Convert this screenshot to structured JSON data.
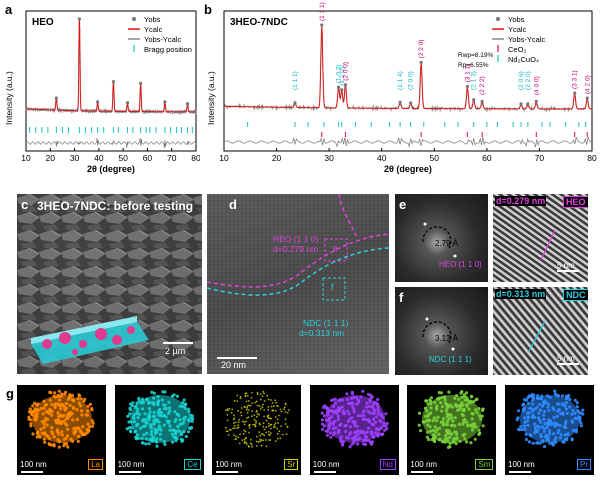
{
  "panels": {
    "a": {
      "label": "a",
      "sample": "HEO"
    },
    "b": {
      "label": "b",
      "sample": "3HEO-7NDC"
    },
    "c": {
      "label": "c",
      "caption": "3HEO-7NDC: before testing",
      "scale": "2 µm"
    },
    "d": {
      "label": "d",
      "scale": "20 nm",
      "heo_label": "HEO (1 1 0)",
      "heo_d": "d=0.279 nm",
      "ndc_label": "NDC (1 1 1)",
      "ndc_d": "d=0.313 nm",
      "box_e": "e",
      "box_f": "f"
    },
    "e": {
      "label": "e",
      "fft_distance": "2.79 Å",
      "fft_plane": "HEO (1 1 0)",
      "dspacing": "d=0.279 nm",
      "phase": "HEO",
      "scale": "5 nm"
    },
    "f": {
      "label": "f",
      "fft_distance": "3.13 Å",
      "fft_plane": "NDC (1 1 1)",
      "dspacing": "d=0.313 nm",
      "phase": "NDC",
      "scale": "5 nm"
    },
    "g": {
      "label": "g",
      "scale": "100 nm",
      "elements": [
        {
          "name": "La",
          "color": "#ff8a00"
        },
        {
          "name": "Ce",
          "color": "#19d2d2"
        },
        {
          "name": "Sr",
          "color": "#d9d400"
        },
        {
          "name": "Nd",
          "color": "#a040ff"
        },
        {
          "name": "Sm",
          "color": "#7ad23a"
        },
        {
          "name": "Pr",
          "color": "#2f8cff"
        }
      ]
    }
  },
  "chart_data": [
    {
      "type": "line",
      "panel": "a",
      "title": "HEO",
      "xlabel": "2θ (degree)",
      "ylabel": "Intensity (a.u.)",
      "xlim": [
        10,
        80
      ],
      "xticks": [
        10,
        20,
        30,
        40,
        50,
        60,
        70,
        80
      ],
      "legend_position": "top-right",
      "series": [
        {
          "name": "Yobs"
        },
        {
          "name": "Ycalc"
        },
        {
          "name": "Yobs-Ycalc"
        },
        {
          "name": "Bragg position"
        }
      ],
      "peaks": [
        {
          "x": 22.5,
          "y": 0.14
        },
        {
          "x": 32.0,
          "y": 1.0
        },
        {
          "x": 39.5,
          "y": 0.1
        },
        {
          "x": 46.0,
          "y": 0.32
        },
        {
          "x": 51.8,
          "y": 0.09
        },
        {
          "x": 57.2,
          "y": 0.3
        },
        {
          "x": 67.2,
          "y": 0.1
        },
        {
          "x": 76.5,
          "y": 0.08
        }
      ],
      "bragg_positions": [
        11.5,
        14.0,
        16.5,
        19.0,
        22.5,
        25.0,
        27.5,
        32.0,
        34.5,
        37.0,
        39.5,
        42.0,
        46.0,
        48.0,
        51.8,
        54.0,
        57.2,
        59.5,
        61.0,
        63.5,
        67.2,
        69.5,
        72.0,
        74.0,
        76.5,
        78.5
      ]
    },
    {
      "type": "line",
      "panel": "b",
      "title": "3HEO-7NDC",
      "xlabel": "2θ (degree)",
      "ylabel": "Intensity (a.u.)",
      "xlim": [
        10,
        80
      ],
      "xticks": [
        10,
        20,
        30,
        40,
        50,
        60,
        70,
        80
      ],
      "legend_position": "top-right",
      "series": [
        {
          "name": "Yobs"
        },
        {
          "name": "Ycalc"
        },
        {
          "name": "Yobs-Ycalc"
        },
        {
          "name": "CeO₂"
        },
        {
          "name": "Nd₂CuO₄"
        }
      ],
      "fit_stats": {
        "Rwp": "Rwp=8.19%",
        "Rp": "Rp=6.55%"
      },
      "peaks": [
        {
          "x": 23.5,
          "y": 0.06,
          "hkl": "(1 1 1)",
          "phase": "Nd2CuO4"
        },
        {
          "x": 28.6,
          "y": 1.0,
          "hkl": "(1 1 1)",
          "phase": "CeO2"
        },
        {
          "x": 31.8,
          "y": 0.25,
          "hkl": "(1 0 3)",
          "phase": "Nd2CuO4"
        },
        {
          "x": 32.4,
          "y": 0.22,
          "hkl": "(1 1 0)",
          "phase": "Nd2CuO4"
        },
        {
          "x": 33.1,
          "y": 0.28,
          "hkl": "(2 0 0)",
          "phase": "CeO2"
        },
        {
          "x": 43.5,
          "y": 0.07,
          "hkl": "(1 1 4)",
          "phase": "Nd2CuO4"
        },
        {
          "x": 45.5,
          "y": 0.06,
          "hkl": "(2 0 0)",
          "phase": "Nd2CuO4"
        },
        {
          "x": 47.5,
          "y": 0.55,
          "hkl": "(2 2 0)",
          "phase": "CeO2"
        },
        {
          "x": 56.3,
          "y": 0.26,
          "hkl": "(3 1 1)",
          "phase": "CeO2"
        },
        {
          "x": 57.5,
          "y": 0.1,
          "hkl": "(2 1 3)",
          "phase": "Nd2CuO4"
        },
        {
          "x": 59.1,
          "y": 0.08,
          "hkl": "(2 2 2)",
          "phase": "CeO2"
        },
        {
          "x": 66.5,
          "y": 0.05,
          "hkl": "(2 0 6)",
          "phase": "Nd2CuO4"
        },
        {
          "x": 67.8,
          "y": 0.05,
          "hkl": "(2 2 0)",
          "phase": "Nd2CuO4"
        },
        {
          "x": 69.4,
          "y": 0.08,
          "hkl": "(4 0 0)",
          "phase": "CeO2"
        },
        {
          "x": 76.7,
          "y": 0.18,
          "hkl": "(3 3 1)",
          "phase": "CeO2"
        },
        {
          "x": 79.1,
          "y": 0.12,
          "hkl": "(4 2 0)",
          "phase": "CeO2"
        }
      ],
      "bragg_ceo2": [
        28.6,
        33.1,
        47.5,
        56.3,
        59.1,
        69.4,
        76.7,
        79.1
      ],
      "bragg_nd2cuo4": [
        14.5,
        23.5,
        26.0,
        29.0,
        31.8,
        32.4,
        35.0,
        38.0,
        41.5,
        43.5,
        45.5,
        48.0,
        52.0,
        54.5,
        57.5,
        60.0,
        62.0,
        65.0,
        66.5,
        67.8,
        70.5,
        72.0,
        75.0,
        77.5,
        78.8
      ]
    }
  ]
}
